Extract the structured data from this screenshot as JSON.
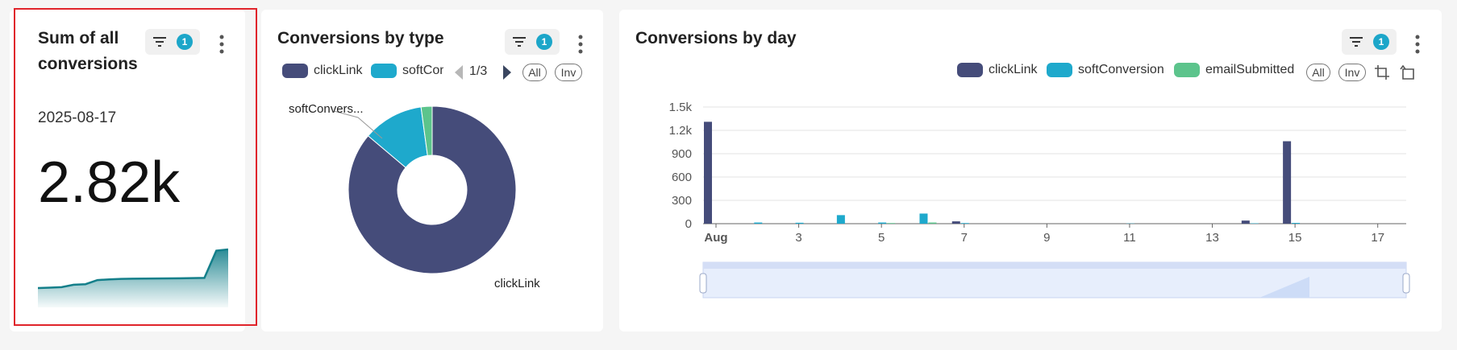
{
  "cards": {
    "sum": {
      "title_line1": "Sum of all",
      "title_line2": "conversions",
      "filter_count": "1",
      "date": "2025-08-17",
      "value": "2.82k",
      "sparkline_color": "#147f8a"
    },
    "type": {
      "title": "Conversions by type",
      "filter_count": "1",
      "legend": [
        {
          "label": "clickLink",
          "color": "#454c7a"
        },
        {
          "label": "softCon",
          "color": "#1ea9cc"
        }
      ],
      "pager": "1/3",
      "all_label": "All",
      "inv_label": "Inv",
      "slice_labels": {
        "soft": "softConvers...",
        "click": "clickLink"
      }
    },
    "day": {
      "title": "Conversions by day",
      "filter_count": "1",
      "legend": [
        {
          "label": "clickLink",
          "color": "#454c7a"
        },
        {
          "label": "softConversion",
          "color": "#1ea9cc"
        },
        {
          "label": "emailSubmitted",
          "color": "#5cc48c"
        }
      ],
      "all_label": "All",
      "inv_label": "Inv"
    }
  },
  "chart_data": [
    {
      "type": "area",
      "title": "",
      "x": [
        1,
        2,
        3,
        4,
        5,
        6,
        7,
        8,
        9,
        10,
        11,
        12,
        13,
        14,
        15,
        16,
        17
      ],
      "values": [
        1310,
        1325,
        1345,
        1440,
        1460,
        1620,
        1650,
        1668,
        1676,
        1680,
        1685,
        1687,
        1690,
        1700,
        1705,
        2770,
        2820
      ],
      "color": "#147f8a"
    },
    {
      "type": "pie",
      "title": "Conversions by type",
      "donut": true,
      "series": [
        {
          "name": "clickLink",
          "value": 2430,
          "color": "#454c7a"
        },
        {
          "name": "softConversion",
          "value": 330,
          "color": "#1ea9cc"
        },
        {
          "name": "emailSubmitted",
          "value": 60,
          "color": "#5cc48c"
        }
      ]
    },
    {
      "type": "bar",
      "title": "Conversions by day",
      "categories": [
        "Aug",
        "2",
        "3",
        "4",
        "5",
        "6",
        "7",
        "8",
        "9",
        "10",
        "11",
        "12",
        "13",
        "14",
        "15",
        "16",
        "17"
      ],
      "x_tick_labels": [
        "Aug",
        "3",
        "5",
        "7",
        "9",
        "11",
        "13",
        "15",
        "17"
      ],
      "y_tick_labels": [
        "0",
        "300",
        "600",
        "900",
        "1.2k",
        "1.5k"
      ],
      "ylim": [
        0,
        1500
      ],
      "grid": true,
      "legend_position": "top-right",
      "series": [
        {
          "name": "clickLink",
          "color": "#454c7a",
          "values": [
            1310,
            0,
            0,
            0,
            0,
            0,
            30,
            0,
            0,
            0,
            0,
            0,
            0,
            40,
            1060,
            0,
            0
          ]
        },
        {
          "name": "softConversion",
          "color": "#1ea9cc",
          "values": [
            0,
            15,
            12,
            110,
            15,
            130,
            8,
            0,
            0,
            0,
            3,
            0,
            0,
            5,
            10,
            0,
            0
          ]
        },
        {
          "name": "emailSubmitted",
          "color": "#5cc48c",
          "values": [
            0,
            0,
            0,
            0,
            8,
            15,
            0,
            0,
            0,
            0,
            0,
            0,
            0,
            0,
            0,
            0,
            0
          ]
        }
      ]
    }
  ]
}
